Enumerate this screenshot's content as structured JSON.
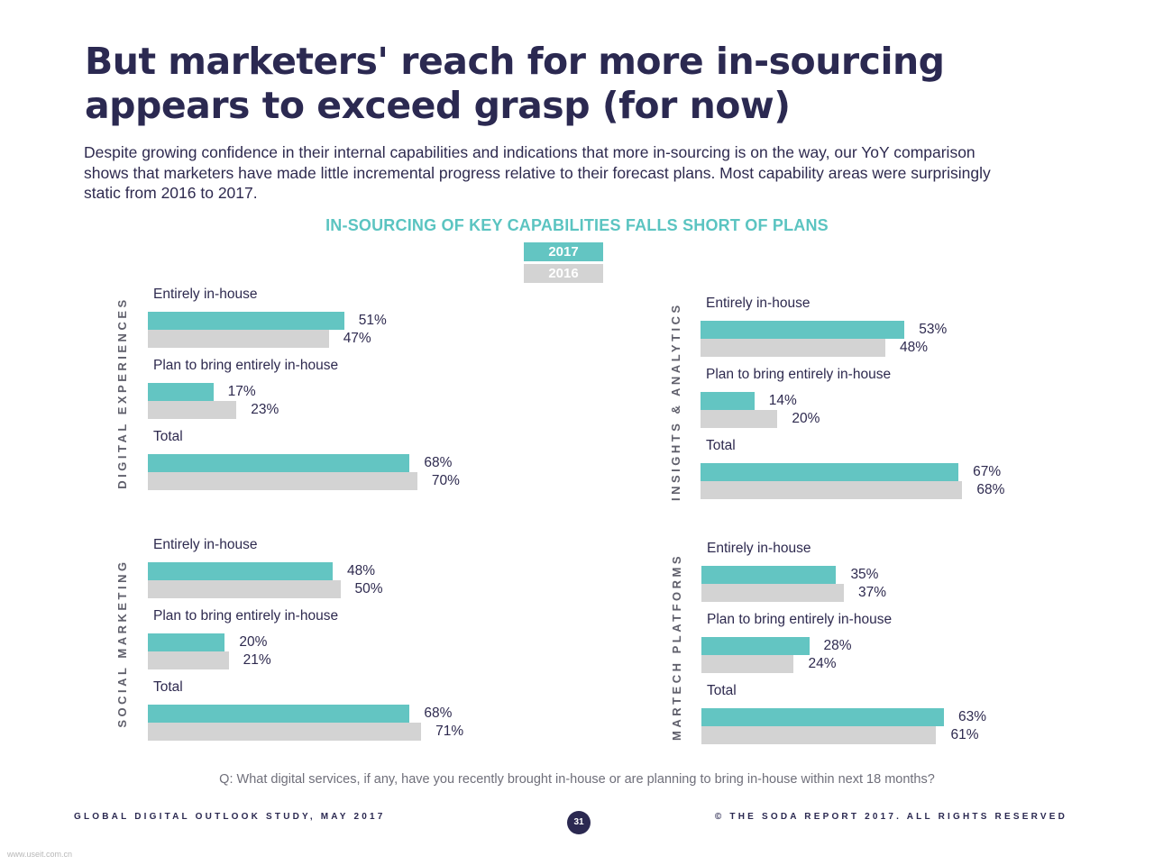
{
  "title_line1": "But marketers' reach for more in-sourcing",
  "title_line2": "appears to exceed grasp (for now)",
  "subtitle_line1": "Despite growing confidence in their internal capabilities and indications that more in-sourcing is on the way, our YoY comparison",
  "subtitle_line2": "shows that marketers have made little incremental progress relative to their forecast plans. Most capability areas were surprisingly",
  "subtitle_line3": "static from 2016 to 2017.",
  "question": "Q: What digital services, if any, have you recently brought in-house or are planning to bring in-house within next 18 months?",
  "footer_left": "GLOBAL DIGITAL OUTLOOK STUDY, MAY 2017",
  "footer_right": "© THE SODA REPORT 2017. ALL RIGHTS RESERVED",
  "page_number": "31",
  "watermark": "www.useit.com.cn",
  "colors": {
    "y2017": "#63c5c2",
    "y2016": "#d3d3d3",
    "title": "#2b2951",
    "accent": "#5bc4c1"
  },
  "chart_data": {
    "type": "bar",
    "orientation": "horizontal",
    "title": "IN-SOURCING OF KEY CAPABILITIES FALLS SHORT OF PLANS",
    "legend": [
      "2017",
      "2016"
    ],
    "legend_position": "top-center",
    "categories": [
      "Entirely in-house",
      "Plan to bring entirely in-house",
      "Total"
    ],
    "unit": "%",
    "panels": [
      {
        "name": "DIGITAL EXPERIENCES",
        "series": [
          {
            "name": "2017",
            "values": [
              51,
              17,
              68
            ]
          },
          {
            "name": "2016",
            "values": [
              47,
              23,
              70
            ]
          }
        ]
      },
      {
        "name": "INSIGHTS & ANALYTICS",
        "series": [
          {
            "name": "2017",
            "values": [
              53,
              14,
              67
            ]
          },
          {
            "name": "2016",
            "values": [
              48,
              20,
              68
            ]
          }
        ]
      },
      {
        "name": "SOCIAL MARKETING",
        "series": [
          {
            "name": "2017",
            "values": [
              48,
              20,
              68
            ]
          },
          {
            "name": "2016",
            "values": [
              50,
              21,
              71
            ]
          }
        ]
      },
      {
        "name": "MARTECH PLATFORMS",
        "series": [
          {
            "name": "2017",
            "values": [
              35,
              28,
              63
            ]
          },
          {
            "name": "2016",
            "values": [
              37,
              24,
              61
            ]
          }
        ]
      }
    ]
  }
}
